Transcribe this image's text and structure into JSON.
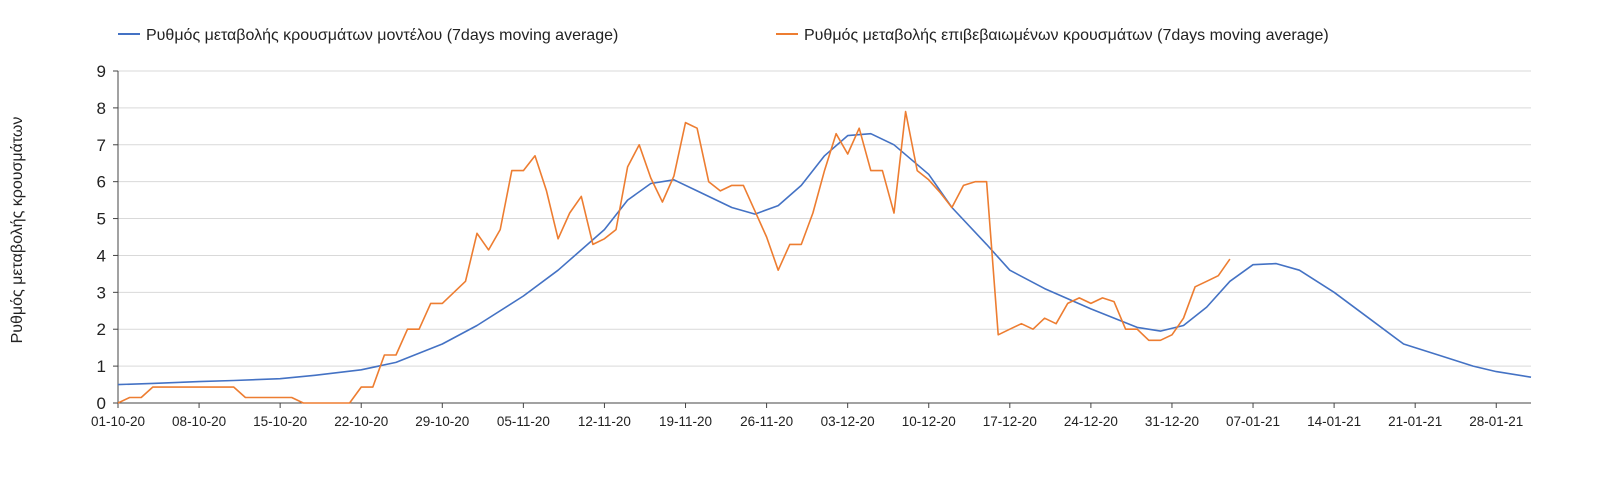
{
  "chart_data": {
    "type": "line",
    "ylabel": "Ρυθμός μεταβολής κρουσμάτων",
    "xlabel": "",
    "ylim": [
      0,
      9
    ],
    "yticks": [
      0,
      1,
      2,
      3,
      4,
      5,
      6,
      7,
      8,
      9
    ],
    "grid": true,
    "legend_position": "top",
    "x_start": "01-10-20",
    "x_end": "31-01-21",
    "xticks": [
      "01-10-20",
      "08-10-20",
      "15-10-20",
      "22-10-20",
      "29-10-20",
      "05-11-20",
      "12-11-20",
      "19-11-20",
      "26-11-20",
      "03-12-20",
      "10-12-20",
      "17-12-20",
      "24-12-20",
      "31-12-20",
      "07-01-21",
      "14-01-21",
      "21-01-21",
      "28-01-21"
    ],
    "series": [
      {
        "name": "Ρυθμός μεταβολής κρουσμάτων μοντέλου (7days moving average)",
        "color": "#4472C4",
        "points": [
          [
            "01-10-20",
            0.5
          ],
          [
            "04-10-20",
            0.53
          ],
          [
            "08-10-20",
            0.58
          ],
          [
            "11-10-20",
            0.61
          ],
          [
            "15-10-20",
            0.66
          ],
          [
            "18-10-20",
            0.75
          ],
          [
            "22-10-20",
            0.9
          ],
          [
            "25-10-20",
            1.1
          ],
          [
            "29-10-20",
            1.6
          ],
          [
            "01-11-20",
            2.1
          ],
          [
            "05-11-20",
            2.9
          ],
          [
            "08-11-20",
            3.6
          ],
          [
            "12-11-20",
            4.7
          ],
          [
            "14-11-20",
            5.5
          ],
          [
            "16-11-20",
            5.95
          ],
          [
            "18-11-20",
            6.05
          ],
          [
            "20-11-20",
            5.75
          ],
          [
            "23-11-20",
            5.3
          ],
          [
            "25-11-20",
            5.12
          ],
          [
            "27-11-20",
            5.35
          ],
          [
            "29-11-20",
            5.9
          ],
          [
            "01-12-20",
            6.7
          ],
          [
            "03-12-20",
            7.25
          ],
          [
            "05-12-20",
            7.3
          ],
          [
            "07-12-20",
            7.0
          ],
          [
            "10-12-20",
            6.2
          ],
          [
            "12-12-20",
            5.3
          ],
          [
            "15-12-20",
            4.3
          ],
          [
            "17-12-20",
            3.6
          ],
          [
            "20-12-20",
            3.1
          ],
          [
            "24-12-20",
            2.55
          ],
          [
            "28-12-20",
            2.05
          ],
          [
            "30-12-20",
            1.95
          ],
          [
            "01-01-21",
            2.1
          ],
          [
            "03-01-21",
            2.6
          ],
          [
            "05-01-21",
            3.3
          ],
          [
            "07-01-21",
            3.75
          ],
          [
            "09-01-21",
            3.78
          ],
          [
            "11-01-21",
            3.6
          ],
          [
            "14-01-21",
            3.0
          ],
          [
            "17-01-21",
            2.3
          ],
          [
            "20-01-21",
            1.6
          ],
          [
            "23-01-21",
            1.3
          ],
          [
            "26-01-21",
            1.0
          ],
          [
            "28-01-21",
            0.85
          ],
          [
            "31-01-21",
            0.7
          ]
        ]
      },
      {
        "name": "Ρυθμός μεταβολής επιβεβαιωμένων κρουσμάτων (7days moving average)",
        "color": "#ED7D31",
        "points": [
          [
            "01-10-20",
            0.0
          ],
          [
            "02-10-20",
            0.15
          ],
          [
            "03-10-20",
            0.15
          ],
          [
            "04-10-20",
            0.43
          ],
          [
            "05-10-20",
            0.43
          ],
          [
            "11-10-20",
            0.43
          ],
          [
            "12-10-20",
            0.15
          ],
          [
            "16-10-20",
            0.15
          ],
          [
            "17-10-20",
            0.0
          ],
          [
            "21-10-20",
            0.0
          ],
          [
            "22-10-20",
            0.43
          ],
          [
            "23-10-20",
            0.43
          ],
          [
            "24-10-20",
            1.3
          ],
          [
            "25-10-20",
            1.3
          ],
          [
            "26-10-20",
            2.0
          ],
          [
            "27-10-20",
            2.0
          ],
          [
            "28-10-20",
            2.7
          ],
          [
            "29-10-20",
            2.7
          ],
          [
            "31-10-20",
            3.3
          ],
          [
            "01-11-20",
            4.6
          ],
          [
            "02-11-20",
            4.15
          ],
          [
            "03-11-20",
            4.7
          ],
          [
            "04-11-20",
            6.3
          ],
          [
            "05-11-20",
            6.3
          ],
          [
            "06-11-20",
            6.7
          ],
          [
            "07-11-20",
            5.75
          ],
          [
            "08-11-20",
            4.45
          ],
          [
            "09-11-20",
            5.15
          ],
          [
            "10-11-20",
            5.6
          ],
          [
            "11-11-20",
            4.3
          ],
          [
            "12-11-20",
            4.45
          ],
          [
            "13-11-20",
            4.7
          ],
          [
            "14-11-20",
            6.4
          ],
          [
            "15-11-20",
            7.0
          ],
          [
            "16-11-20",
            6.1
          ],
          [
            "17-11-20",
            5.45
          ],
          [
            "18-11-20",
            6.15
          ],
          [
            "19-11-20",
            7.6
          ],
          [
            "20-11-20",
            7.45
          ],
          [
            "21-11-20",
            6.0
          ],
          [
            "22-11-20",
            5.75
          ],
          [
            "23-11-20",
            5.9
          ],
          [
            "24-11-20",
            5.9
          ],
          [
            "25-11-20",
            5.2
          ],
          [
            "26-11-20",
            4.5
          ],
          [
            "27-11-20",
            3.6
          ],
          [
            "28-11-20",
            4.3
          ],
          [
            "29-11-20",
            4.3
          ],
          [
            "30-11-20",
            5.15
          ],
          [
            "01-12-20",
            6.3
          ],
          [
            "02-12-20",
            7.3
          ],
          [
            "03-12-20",
            6.75
          ],
          [
            "04-12-20",
            7.45
          ],
          [
            "05-12-20",
            6.3
          ],
          [
            "06-12-20",
            6.3
          ],
          [
            "07-12-20",
            5.15
          ],
          [
            "08-12-20",
            7.9
          ],
          [
            "09-12-20",
            6.3
          ],
          [
            "10-12-20",
            6.05
          ],
          [
            "11-12-20",
            5.7
          ],
          [
            "12-12-20",
            5.3
          ],
          [
            "13-12-20",
            5.9
          ],
          [
            "14-12-20",
            6.0
          ],
          [
            "15-12-20",
            6.0
          ],
          [
            "16-12-20",
            1.85
          ],
          [
            "17-12-20",
            2.0
          ],
          [
            "18-12-20",
            2.15
          ],
          [
            "19-12-20",
            2.0
          ],
          [
            "20-12-20",
            2.3
          ],
          [
            "21-12-20",
            2.15
          ],
          [
            "22-12-20",
            2.7
          ],
          [
            "23-12-20",
            2.85
          ],
          [
            "24-12-20",
            2.7
          ],
          [
            "25-12-20",
            2.85
          ],
          [
            "26-12-20",
            2.75
          ],
          [
            "27-12-20",
            2.0
          ],
          [
            "28-12-20",
            2.0
          ],
          [
            "29-12-20",
            1.7
          ],
          [
            "30-12-20",
            1.7
          ],
          [
            "31-12-20",
            1.85
          ],
          [
            "01-01-21",
            2.3
          ],
          [
            "02-01-21",
            3.15
          ],
          [
            "03-01-21",
            3.3
          ],
          [
            "04-01-21",
            3.45
          ],
          [
            "05-01-21",
            3.9
          ]
        ]
      }
    ]
  }
}
